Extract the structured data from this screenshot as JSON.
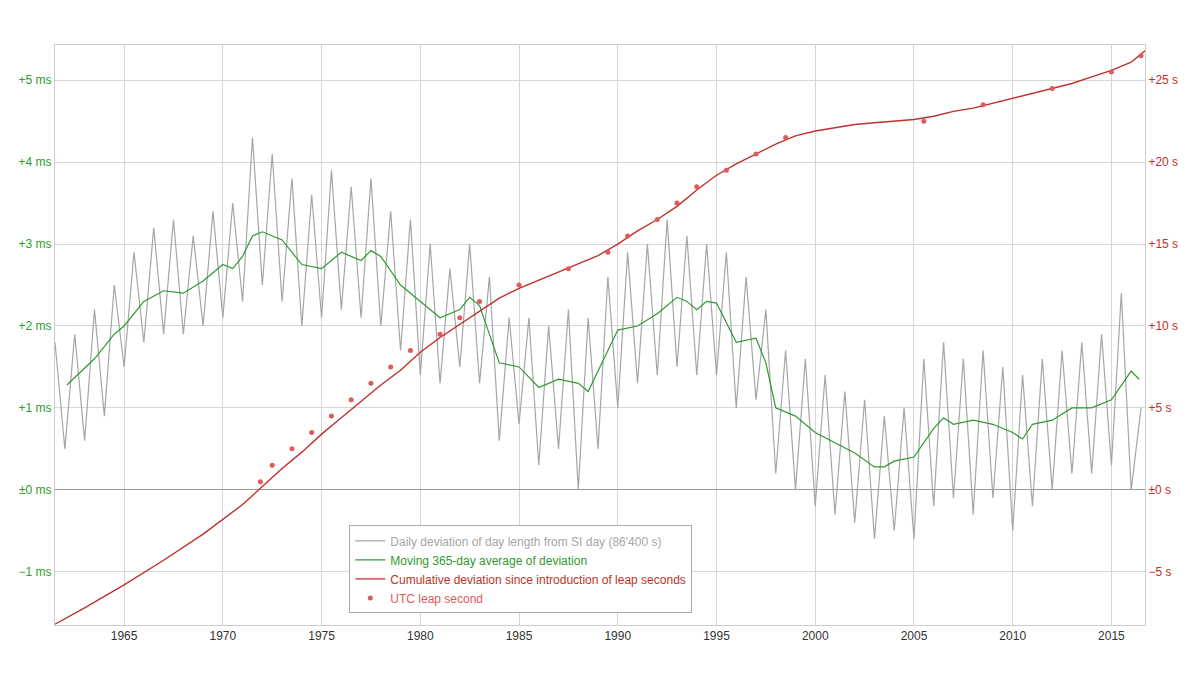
{
  "chart_data": {
    "type": "line",
    "grid": true,
    "legend": "bottom",
    "xlim": [
      1961.5,
      2016.7
    ],
    "xticks": [
      1965,
      1970,
      1975,
      1980,
      1985,
      1990,
      1995,
      2000,
      2005,
      2010,
      2015
    ],
    "ylim": [
      -1.65,
      5.43
    ],
    "yticks": [
      {
        "value": -1,
        "label": "−1 ms"
      },
      {
        "value": 0,
        "label": "±0 ms"
      },
      {
        "value": 1,
        "label": "+1 ms"
      },
      {
        "value": 2,
        "label": "+2 ms"
      },
      {
        "value": 3,
        "label": "+3 ms"
      },
      {
        "value": 4,
        "label": "+4 ms"
      },
      {
        "value": 5,
        "label": "+5 ms"
      }
    ],
    "y2lim": [
      -8.25,
      27.15
    ],
    "y2ticks": [
      {
        "value": -5,
        "label": "−5 s"
      },
      {
        "value": 0,
        "label": "±0 s"
      },
      {
        "value": 5,
        "label": "+5 s"
      },
      {
        "value": 10,
        "label": "+10 s"
      },
      {
        "value": 15,
        "label": "+15 s"
      },
      {
        "value": 20,
        "label": "+20 s"
      },
      {
        "value": 25,
        "label": "+25 s"
      }
    ],
    "series": [
      {
        "name": "Daily deviation of day length from SI day (86'400 s)",
        "color": "#a6a6a6",
        "type": "line",
        "x": [
          1961.5,
          1962.0,
          1962.5,
          1963.0,
          1963.5,
          1964.0,
          1964.5,
          1965.0,
          1965.5,
          1966.0,
          1966.5,
          1967.0,
          1967.5,
          1968.0,
          1968.5,
          1969.0,
          1969.5,
          1970.0,
          1970.5,
          1971.0,
          1971.5,
          1972.0,
          1972.5,
          1973.0,
          1973.5,
          1974.0,
          1974.5,
          1975.0,
          1975.5,
          1976.0,
          1976.5,
          1977.0,
          1977.5,
          1978.0,
          1978.5,
          1979.0,
          1979.5,
          1980.0,
          1980.5,
          1981.0,
          1981.5,
          1982.0,
          1982.5,
          1983.0,
          1983.5,
          1984.0,
          1984.5,
          1985.0,
          1985.5,
          1986.0,
          1986.5,
          1987.0,
          1987.5,
          1988.0,
          1988.5,
          1989.0,
          1989.5,
          1990.0,
          1990.5,
          1991.0,
          1991.5,
          1992.0,
          1992.5,
          1993.0,
          1993.5,
          1994.0,
          1994.5,
          1995.0,
          1995.5,
          1996.0,
          1996.5,
          1997.0,
          1997.5,
          1998.0,
          1998.5,
          1999.0,
          1999.5,
          2000.0,
          2000.5,
          2001.0,
          2001.5,
          2002.0,
          2002.5,
          2003.0,
          2003.5,
          2004.0,
          2004.5,
          2005.0,
          2005.5,
          2006.0,
          2006.5,
          2007.0,
          2007.5,
          2008.0,
          2008.5,
          2009.0,
          2009.5,
          2010.0,
          2010.5,
          2011.0,
          2011.5,
          2012.0,
          2012.5,
          2013.0,
          2013.5,
          2014.0,
          2014.5,
          2015.0,
          2015.5,
          2016.0,
          2016.5
        ],
        "values": [
          1.8,
          0.5,
          1.9,
          0.6,
          2.2,
          0.9,
          2.5,
          1.5,
          2.9,
          1.8,
          3.2,
          1.9,
          3.3,
          1.9,
          3.1,
          2.0,
          3.4,
          2.1,
          3.5,
          2.3,
          4.3,
          2.5,
          4.1,
          2.3,
          3.8,
          2.0,
          3.6,
          2.1,
          3.9,
          2.2,
          3.7,
          2.1,
          3.8,
          2.0,
          3.4,
          1.7,
          3.3,
          1.4,
          3.0,
          1.3,
          2.7,
          1.5,
          3.0,
          1.3,
          2.6,
          0.6,
          2.1,
          0.8,
          2.1,
          0.3,
          2.0,
          0.5,
          2.2,
          0.0,
          2.1,
          0.5,
          2.6,
          1.0,
          2.9,
          1.3,
          3.0,
          1.4,
          3.3,
          1.5,
          3.1,
          1.4,
          3.0,
          1.4,
          2.9,
          1.0,
          2.6,
          1.1,
          2.2,
          0.2,
          1.7,
          0.0,
          1.6,
          -0.2,
          1.4,
          -0.3,
          1.2,
          -0.4,
          1.1,
          -0.6,
          0.9,
          -0.5,
          1.0,
          -0.6,
          1.6,
          -0.2,
          1.8,
          -0.1,
          1.6,
          -0.3,
          1.7,
          -0.1,
          1.5,
          -0.5,
          1.4,
          -0.2,
          1.6,
          0.0,
          1.7,
          0.2,
          1.8,
          0.2,
          1.9,
          0.3,
          2.4,
          0.0,
          1.0
        ]
      },
      {
        "name": "Moving 365-day average of deviation",
        "color": "#2e9a2e",
        "type": "line",
        "x": [
          1962.1,
          1963.5,
          1964.5,
          1965.0,
          1966.0,
          1967.0,
          1968.0,
          1969.0,
          1970.0,
          1970.5,
          1971.0,
          1971.5,
          1972.0,
          1973.0,
          1974.0,
          1975.0,
          1976.0,
          1976.5,
          1977.0,
          1977.5,
          1978.0,
          1979.0,
          1980.0,
          1981.0,
          1982.0,
          1982.5,
          1983.0,
          1983.5,
          1984.0,
          1985.0,
          1986.0,
          1987.0,
          1988.0,
          1988.5,
          1989.0,
          1990.0,
          1991.0,
          1992.0,
          1993.0,
          1993.5,
          1994.0,
          1994.5,
          1995.0,
          1996.0,
          1997.0,
          1997.5,
          1998.0,
          1999.0,
          2000.0,
          2001.0,
          2002.0,
          2003.0,
          2003.5,
          2004.0,
          2005.0,
          2006.0,
          2006.5,
          2007.0,
          2008.0,
          2009.0,
          2010.0,
          2010.5,
          2011.0,
          2012.0,
          2013.0,
          2014.0,
          2015.0,
          2016.0,
          2016.4
        ],
        "values": [
          1.28,
          1.6,
          1.9,
          2.0,
          2.3,
          2.43,
          2.4,
          2.55,
          2.75,
          2.7,
          2.85,
          3.1,
          3.15,
          3.05,
          2.75,
          2.7,
          2.9,
          2.85,
          2.8,
          2.92,
          2.85,
          2.5,
          2.3,
          2.1,
          2.2,
          2.35,
          2.25,
          1.9,
          1.55,
          1.5,
          1.25,
          1.35,
          1.3,
          1.2,
          1.45,
          1.95,
          2.0,
          2.15,
          2.35,
          2.3,
          2.2,
          2.3,
          2.28,
          1.8,
          1.85,
          1.55,
          1.0,
          0.9,
          0.7,
          0.58,
          0.45,
          0.28,
          0.28,
          0.35,
          0.4,
          0.75,
          0.88,
          0.8,
          0.85,
          0.8,
          0.7,
          0.62,
          0.8,
          0.85,
          1.0,
          1.0,
          1.1,
          1.45,
          1.35
        ]
      },
      {
        "name": "Cumulative deviation since introduction of leap seconds",
        "color": "#c0302a",
        "type": "line",
        "axis": "y2",
        "x": [
          1961.5,
          1963,
          1965,
          1967,
          1969,
          1971,
          1972,
          1973,
          1974,
          1975,
          1976,
          1977,
          1978,
          1979,
          1980,
          1981,
          1982,
          1983,
          1984,
          1985,
          1986,
          1987,
          1988,
          1989,
          1990,
          1991,
          1992,
          1993,
          1994,
          1995,
          1996,
          1997,
          1998,
          1999,
          2000,
          2001,
          2002,
          2003,
          2004,
          2005,
          2006,
          2007,
          2008,
          2009,
          2010,
          2011,
          2012,
          2013,
          2014,
          2015,
          2016,
          2016.7
        ],
        "values": [
          -8.2,
          -7.2,
          -5.8,
          -4.3,
          -2.7,
          -0.9,
          0.2,
          1.3,
          2.3,
          3.4,
          4.4,
          5.4,
          6.4,
          7.3,
          8.4,
          9.3,
          10.1,
          10.9,
          11.7,
          12.3,
          12.8,
          13.3,
          13.8,
          14.3,
          15.0,
          15.8,
          16.5,
          17.3,
          18.3,
          19.2,
          19.9,
          20.5,
          21.1,
          21.6,
          21.9,
          22.1,
          22.3,
          22.4,
          22.5,
          22.6,
          22.8,
          23.1,
          23.3,
          23.6,
          23.9,
          24.2,
          24.5,
          24.8,
          25.2,
          25.6,
          26.1,
          26.8
        ]
      },
      {
        "name": "UTC leap second",
        "color": "#e05a5a",
        "type": "scatter",
        "marker": "circle",
        "axis": "y2",
        "x": [
          1971.9,
          1972.5,
          1973.5,
          1974.5,
          1975.5,
          1976.5,
          1977.5,
          1978.5,
          1979.5,
          1981.0,
          1982.0,
          1983.0,
          1985.0,
          1987.5,
          1989.5,
          1990.5,
          1992.0,
          1993.0,
          1994.0,
          1995.5,
          1997.0,
          1998.5,
          2005.5,
          2008.5,
          2012.0,
          2015.0,
          2016.5
        ],
        "values": [
          0.5,
          1.5,
          2.5,
          3.5,
          4.5,
          5.5,
          6.5,
          7.5,
          8.5,
          9.5,
          10.5,
          11.5,
          12.5,
          13.5,
          14.5,
          15.5,
          16.5,
          17.5,
          18.5,
          19.5,
          20.5,
          21.5,
          22.5,
          23.5,
          24.5,
          25.5,
          26.5
        ]
      }
    ]
  }
}
